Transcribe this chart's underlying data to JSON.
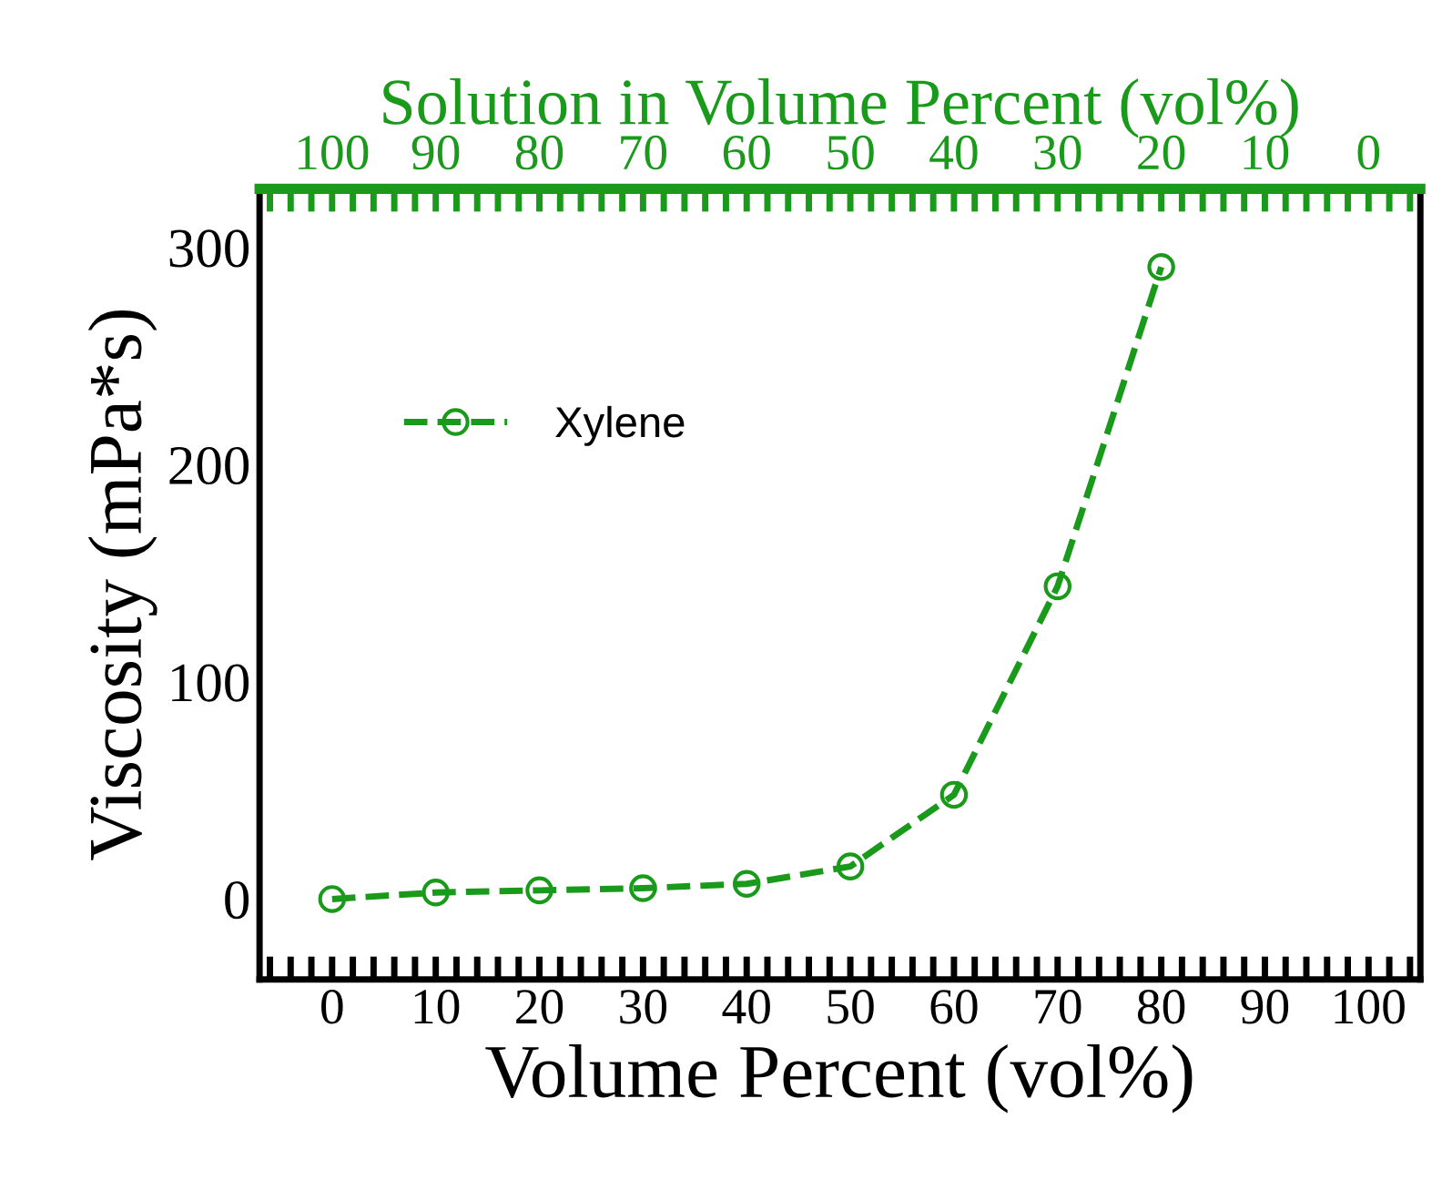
{
  "chart_data": {
    "type": "line",
    "xlabel": "Volume Percent (vol%)",
    "ylabel": "Viscosity (mPa*s)",
    "x2label": "Solution in Volume Percent (vol%)",
    "x": [
      0,
      10,
      20,
      30,
      40,
      50,
      60,
      70,
      80
    ],
    "series": [
      {
        "name": "Xylene",
        "color": "#1a9a1a",
        "values": [
          0,
          3,
          4,
          5,
          7,
          15,
          48,
          144,
          291
        ]
      }
    ],
    "xlim": [
      -7,
      105
    ],
    "xticks": [
      {
        "value": -6,
        "label": null
      },
      {
        "value": -4,
        "label": null
      },
      {
        "value": -2,
        "label": null
      },
      0,
      {
        "value": 2,
        "label": null
      },
      {
        "value": 4,
        "label": null
      },
      {
        "value": 6,
        "label": null
      },
      {
        "value": 8,
        "label": null
      },
      10,
      {
        "value": 12,
        "label": null
      },
      {
        "value": 14,
        "label": null
      },
      {
        "value": 16,
        "label": null
      },
      {
        "value": 18,
        "label": null
      },
      20,
      {
        "value": 22,
        "label": null
      },
      {
        "value": 24,
        "label": null
      },
      {
        "value": 26,
        "label": null
      },
      {
        "value": 28,
        "label": null
      },
      30,
      {
        "value": 32,
        "label": null
      },
      {
        "value": 34,
        "label": null
      },
      {
        "value": 36,
        "label": null
      },
      {
        "value": 38,
        "label": null
      },
      40,
      {
        "value": 42,
        "label": null
      },
      {
        "value": 44,
        "label": null
      },
      {
        "value": 46,
        "label": null
      },
      {
        "value": 48,
        "label": null
      },
      50,
      {
        "value": 52,
        "label": null
      },
      {
        "value": 54,
        "label": null
      },
      {
        "value": 56,
        "label": null
      },
      {
        "value": 58,
        "label": null
      },
      60,
      {
        "value": 62,
        "label": null
      },
      {
        "value": 64,
        "label": null
      },
      {
        "value": 66,
        "label": null
      },
      {
        "value": 68,
        "label": null
      },
      70,
      {
        "value": 72,
        "label": null
      },
      {
        "value": 74,
        "label": null
      },
      {
        "value": 76,
        "label": null
      },
      {
        "value": 78,
        "label": null
      },
      80,
      {
        "value": 82,
        "label": null
      },
      {
        "value": 84,
        "label": null
      },
      {
        "value": 86,
        "label": null
      },
      {
        "value": 88,
        "label": null
      },
      90,
      {
        "value": 92,
        "label": null
      },
      {
        "value": 94,
        "label": null
      },
      {
        "value": 96,
        "label": null
      },
      {
        "value": 98,
        "label": null
      },
      100,
      {
        "value": 102,
        "label": null
      },
      {
        "value": 104,
        "label": null
      }
    ],
    "x2lim": [
      107,
      -5
    ],
    "x2ticks": [
      {
        "value": 106,
        "label": null
      },
      {
        "value": 104,
        "label": null
      },
      {
        "value": 102,
        "label": null
      },
      100,
      {
        "value": 98,
        "label": null
      },
      {
        "value": 96,
        "label": null
      },
      {
        "value": 94,
        "label": null
      },
      {
        "value": 92,
        "label": null
      },
      90,
      {
        "value": 88,
        "label": null
      },
      {
        "value": 86,
        "label": null
      },
      {
        "value": 84,
        "label": null
      },
      {
        "value": 82,
        "label": null
      },
      80,
      {
        "value": 78,
        "label": null
      },
      {
        "value": 76,
        "label": null
      },
      {
        "value": 74,
        "label": null
      },
      {
        "value": 72,
        "label": null
      },
      70,
      {
        "value": 68,
        "label": null
      },
      {
        "value": 66,
        "label": null
      },
      {
        "value": 64,
        "label": null
      },
      {
        "value": 62,
        "label": null
      },
      60,
      {
        "value": 58,
        "label": null
      },
      {
        "value": 56,
        "label": null
      },
      {
        "value": 54,
        "label": null
      },
      {
        "value": 52,
        "label": null
      },
      50,
      {
        "value": 48,
        "label": null
      },
      {
        "value": 46,
        "label": null
      },
      {
        "value": 44,
        "label": null
      },
      {
        "value": 42,
        "label": null
      },
      40,
      {
        "value": 38,
        "label": null
      },
      {
        "value": 36,
        "label": null
      },
      {
        "value": 34,
        "label": null
      },
      {
        "value": 32,
        "label": null
      },
      30,
      {
        "value": 28,
        "label": null
      },
      {
        "value": 26,
        "label": null
      },
      {
        "value": 24,
        "label": null
      },
      {
        "value": 22,
        "label": null
      },
      20,
      {
        "value": 18,
        "label": null
      },
      {
        "value": 16,
        "label": null
      },
      {
        "value": 14,
        "label": null
      },
      {
        "value": 12,
        "label": null
      },
      10,
      {
        "value": 8,
        "label": null
      },
      {
        "value": 6,
        "label": null
      },
      {
        "value": 4,
        "label": null
      },
      {
        "value": 2,
        "label": null
      },
      0,
      {
        "value": -2,
        "label": null
      },
      {
        "value": -4,
        "label": null
      }
    ],
    "ylim": [
      -37,
      327
    ],
    "yticks": [
      0,
      100,
      200,
      300
    ],
    "marker": "circle",
    "line_style": "dashed",
    "grid": false,
    "legend": "left"
  }
}
